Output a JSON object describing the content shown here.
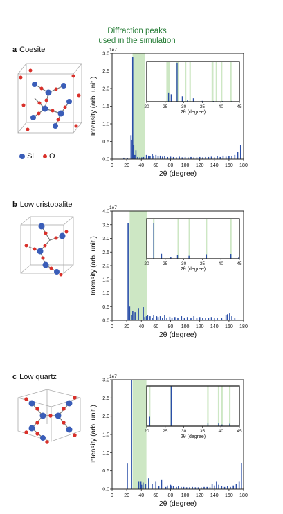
{
  "header": {
    "line1": "Diffraction peaks",
    "line2": "used in the simulation"
  },
  "panels": [
    {
      "letter": "a",
      "name": "Coesite"
    },
    {
      "letter": "b",
      "name": "Low cristobalite"
    },
    {
      "letter": "c",
      "name": "Low quartz"
    }
  ],
  "legend": {
    "si_label": "Si",
    "o_label": "O"
  },
  "colors": {
    "peak": "#2b4fa8",
    "highlight": "#cde7c4",
    "si_atom": "#3a5db8",
    "o_atom": "#d9302a",
    "header": "#2a7f3a"
  },
  "chart_data": [
    {
      "type": "bar",
      "title": "Coesite",
      "xlabel": "2θ (degree)",
      "ylabel": "Intensity (arb. unit.)",
      "exponent_label": "1e7",
      "xlim": [
        0,
        180
      ],
      "ylim": [
        0,
        3.0
      ],
      "xticks": [
        0,
        20,
        40,
        60,
        80,
        100,
        120,
        140,
        160,
        180
      ],
      "yticks": [
        0.0,
        0.5,
        1.0,
        1.5,
        2.0,
        2.5,
        3.0
      ],
      "ytick_labels": [
        "0.0",
        "0.5",
        "1.0",
        "1.5",
        "2.0",
        "2.5",
        "3.0"
      ],
      "highlight_range": [
        28,
        45
      ],
      "peaks": [
        [
          16,
          0.04
        ],
        [
          21,
          0.02
        ],
        [
          25.9,
          0.68
        ],
        [
          26.6,
          0.55
        ],
        [
          28.2,
          2.9
        ],
        [
          29.6,
          0.4
        ],
        [
          31,
          0.12
        ],
        [
          32.6,
          0.25
        ],
        [
          35,
          0.06
        ],
        [
          38,
          0.05
        ],
        [
          40.5,
          0.05
        ],
        [
          43,
          0.06
        ],
        [
          47,
          0.12
        ],
        [
          50,
          0.1
        ],
        [
          52,
          0.08
        ],
        [
          55,
          0.14
        ],
        [
          57,
          0.1
        ],
        [
          60,
          0.12
        ],
        [
          63,
          0.08
        ],
        [
          66,
          0.1
        ],
        [
          69,
          0.07
        ],
        [
          72,
          0.08
        ],
        [
          76,
          0.06
        ],
        [
          80,
          0.07
        ],
        [
          84,
          0.06
        ],
        [
          88,
          0.05
        ],
        [
          92,
          0.07
        ],
        [
          96,
          0.05
        ],
        [
          100,
          0.06
        ],
        [
          104,
          0.05
        ],
        [
          108,
          0.06
        ],
        [
          112,
          0.05
        ],
        [
          116,
          0.05
        ],
        [
          120,
          0.06
        ],
        [
          124,
          0.05
        ],
        [
          128,
          0.06
        ],
        [
          132,
          0.06
        ],
        [
          136,
          0.07
        ],
        [
          140,
          0.05
        ],
        [
          144,
          0.08
        ],
        [
          148,
          0.06
        ],
        [
          152,
          0.1
        ],
        [
          156,
          0.07
        ],
        [
          160,
          0.08
        ],
        [
          164,
          0.09
        ],
        [
          168,
          0.12
        ],
        [
          172,
          0.2
        ],
        [
          176,
          0.4
        ]
      ],
      "inset": {
        "xlim": [
          20,
          45
        ],
        "xticks": [
          20,
          25,
          30,
          35,
          40,
          45
        ],
        "xlabel": "2θ (degree)",
        "ymax": 3.0,
        "highlight_bands": [
          [
            25.3,
            26.2
          ],
          [
            28.0,
            28.6
          ],
          [
            30.3,
            30.6
          ],
          [
            31.5,
            31.9
          ],
          [
            37.5,
            38.0
          ],
          [
            38.6,
            39.0
          ],
          [
            40.0,
            40.4
          ],
          [
            42.5,
            42.9
          ]
        ]
      }
    },
    {
      "type": "bar",
      "title": "Low cristobalite",
      "xlabel": "2θ (degree)",
      "ylabel": "Intensity (arb. unit.)",
      "exponent_label": "1e7",
      "xlim": [
        0,
        180
      ],
      "ylim": [
        0,
        4.0
      ],
      "xticks": [
        0,
        20,
        40,
        60,
        80,
        100,
        120,
        140,
        160,
        180
      ],
      "yticks": [
        0.0,
        0.5,
        1.0,
        1.5,
        2.0,
        2.5,
        3.0,
        3.5,
        4.0
      ],
      "ytick_labels": [
        "0.0",
        "0.5",
        "1.0",
        "1.5",
        "2.0",
        "2.5",
        "3.0",
        "3.5",
        "4.0"
      ],
      "highlight_range": [
        24,
        48
      ],
      "peaks": [
        [
          21.9,
          3.55
        ],
        [
          24,
          0.5
        ],
        [
          26.5,
          0.2
        ],
        [
          28.3,
          0.35
        ],
        [
          31.4,
          0.3
        ],
        [
          36.1,
          0.45
        ],
        [
          42.7,
          0.48
        ],
        [
          44.8,
          0.12
        ],
        [
          47,
          0.15
        ],
        [
          48.6,
          0.2
        ],
        [
          52,
          0.15
        ],
        [
          55,
          0.1
        ],
        [
          57,
          0.2
        ],
        [
          61,
          0.15
        ],
        [
          63,
          0.12
        ],
        [
          66,
          0.15
        ],
        [
          69,
          0.1
        ],
        [
          72,
          0.18
        ],
        [
          75,
          0.1
        ],
        [
          79,
          0.13
        ],
        [
          82,
          0.1
        ],
        [
          86,
          0.12
        ],
        [
          90,
          0.1
        ],
        [
          95,
          0.15
        ],
        [
          99,
          0.1
        ],
        [
          103,
          0.12
        ],
        [
          108,
          0.1
        ],
        [
          112,
          0.15
        ],
        [
          116,
          0.1
        ],
        [
          120,
          0.12
        ],
        [
          124,
          0.08
        ],
        [
          128,
          0.1
        ],
        [
          132,
          0.1
        ],
        [
          136,
          0.12
        ],
        [
          140,
          0.1
        ],
        [
          144,
          0.1
        ],
        [
          150,
          0.1
        ],
        [
          156,
          0.2
        ],
        [
          158,
          0.22
        ],
        [
          161,
          0.25
        ],
        [
          164,
          0.15
        ],
        [
          168,
          0.1
        ]
      ],
      "inset": {
        "xlim": [
          20,
          45
        ],
        "xticks": [
          20,
          25,
          30,
          35,
          40,
          45
        ],
        "xlabel": "2θ (degree)",
        "ymax": 4.0,
        "highlight_bands": [
          [
            21.7,
            22.1
          ],
          [
            28.3,
            28.6
          ],
          [
            31.3,
            31.7
          ],
          [
            35.9,
            36.3
          ],
          [
            42.5,
            42.9
          ]
        ]
      }
    },
    {
      "type": "bar",
      "title": "Low quartz",
      "xlabel": "2θ (degree)",
      "ylabel": "Intensity (arb. unit.)",
      "exponent_label": "1e7",
      "xlim": [
        0,
        180
      ],
      "ylim": [
        0,
        3.0
      ],
      "xticks": [
        0,
        20,
        40,
        60,
        80,
        100,
        120,
        140,
        160,
        180
      ],
      "yticks": [
        0.0,
        0.5,
        1.0,
        1.5,
        2.0,
        2.5,
        3.0
      ],
      "ytick_labels": [
        "0.0",
        "0.5",
        "1.0",
        "1.5",
        "2.0",
        "2.5",
        "3.0"
      ],
      "highlight_range": [
        28,
        47
      ],
      "peaks": [
        [
          20.8,
          0.7
        ],
        [
          26.6,
          3.0
        ],
        [
          36.5,
          0.2
        ],
        [
          39.4,
          0.2
        ],
        [
          40.3,
          0.12
        ],
        [
          42.4,
          0.18
        ],
        [
          45.8,
          0.15
        ],
        [
          50.1,
          0.3
        ],
        [
          54.9,
          0.14
        ],
        [
          59.9,
          0.2
        ],
        [
          64,
          0.08
        ],
        [
          67.7,
          0.25
        ],
        [
          73.5,
          0.06
        ],
        [
          75.6,
          0.1
        ],
        [
          79.9,
          0.12
        ],
        [
          81.5,
          0.1
        ],
        [
          84,
          0.08
        ],
        [
          88,
          0.06
        ],
        [
          90.8,
          0.08
        ],
        [
          94.6,
          0.06
        ],
        [
          98,
          0.06
        ],
        [
          102,
          0.05
        ],
        [
          106,
          0.05
        ],
        [
          110,
          0.06
        ],
        [
          114,
          0.05
        ],
        [
          118,
          0.05
        ],
        [
          122,
          0.05
        ],
        [
          126,
          0.06
        ],
        [
          130,
          0.06
        ],
        [
          134,
          0.05
        ],
        [
          137,
          0.15
        ],
        [
          140,
          0.1
        ],
        [
          143,
          0.2
        ],
        [
          146,
          0.12
        ],
        [
          150,
          0.08
        ],
        [
          154,
          0.06
        ],
        [
          158,
          0.08
        ],
        [
          162,
          0.06
        ],
        [
          166,
          0.1
        ],
        [
          170,
          0.15
        ],
        [
          174,
          0.2
        ],
        [
          177,
          0.72
        ]
      ],
      "inset": {
        "xlim": [
          20,
          45
        ],
        "xticks": [
          20,
          25,
          30,
          35,
          40,
          45
        ],
        "xlabel": "2θ (degree)",
        "ymax": 3.0,
        "highlight_bands": [
          [
            20.6,
            21.0
          ],
          [
            26.4,
            26.8
          ],
          [
            36.3,
            36.7
          ],
          [
            39.2,
            39.6
          ],
          [
            40.1,
            40.5
          ],
          [
            42.2,
            42.6
          ]
        ]
      }
    }
  ]
}
